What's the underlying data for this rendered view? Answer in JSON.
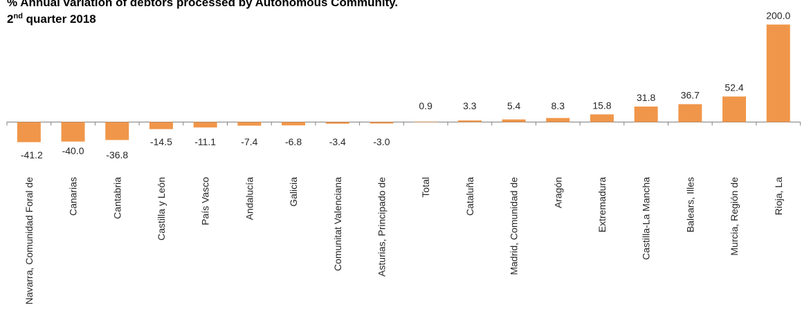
{
  "chart_data": {
    "type": "bar",
    "title_line1": "% Annual variation of debtors processed by Autonomous Community.",
    "title_line2_base": "2",
    "title_line2_sup": "nd",
    "title_line2_rest": " quarter 2018",
    "categories": [
      "Navarra, Comunidad Foral de",
      "Canarias",
      "Cantabria",
      "Castilla y León",
      "País Vasco",
      "Andalucía",
      "Galicia",
      "Comunitat Valenciana",
      "Asturias, Principado de",
      "Total",
      "Cataluña",
      "Madrid, Comunidad de",
      "Aragón",
      "Extremadura",
      "Castilla-La Mancha",
      "Balears, Illes",
      "Murcia, Región de",
      "Rioja, La"
    ],
    "values": [
      -41.2,
      -40.0,
      -36.8,
      -14.5,
      -11.1,
      -7.4,
      -6.8,
      -3.4,
      -3.0,
      0.9,
      3.3,
      5.4,
      8.3,
      15.8,
      31.8,
      36.7,
      52.4,
      200.0
    ],
    "value_labels": [
      "-41.2",
      "-40.0",
      "-36.8",
      "-14.5",
      "-11.1",
      "-7.4",
      "-6.8",
      "-3.4",
      "-3.0",
      "0.9",
      "3.3",
      "5.4",
      "8.3",
      "15.8",
      "31.8",
      "36.7",
      "52.4",
      "200.0"
    ],
    "bar_color": "#F0964A",
    "axis_color": "#7f7f7f",
    "grid": false,
    "legend": false
  }
}
